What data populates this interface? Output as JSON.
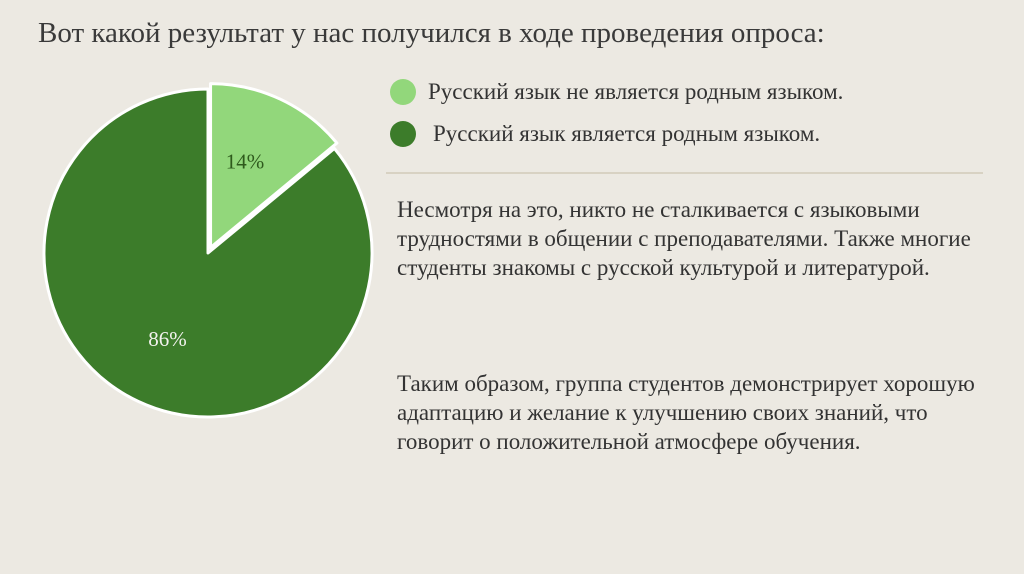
{
  "title": "Вот какой результат у нас получился в ходе проведения опроса:",
  "chart_data": {
    "type": "pie",
    "series": [
      {
        "label": "Русский язык не является родным языком.",
        "value": 14,
        "display": "14%",
        "color": "#92d77b",
        "label_color": "#2e5a1c",
        "exploded": true
      },
      {
        "label": "Русский язык является родным языком.",
        "value": 86,
        "display": "86%",
        "color": "#3c7c2a",
        "label_color": "#f2f2ee",
        "exploded": false
      }
    ],
    "start_angle": "12 o'clock",
    "direction": "clockwise",
    "legend_position": "right"
  },
  "paragraphs": [
    "Несмотря на это, никто не сталкивается с языковыми трудностями в общении с преподавателями. Также многие студенты знакомы с русской культурой и литературой.",
    "Таким образом, группа студентов демонстрирует хорошую адаптацию и желание к улучшению своих знаний, что говорит о положительной атмосфере обучения."
  ],
  "colors": {
    "background": "#ece9e2",
    "divider": "#d8d2c3",
    "slice_stroke": "#ffffff"
  }
}
